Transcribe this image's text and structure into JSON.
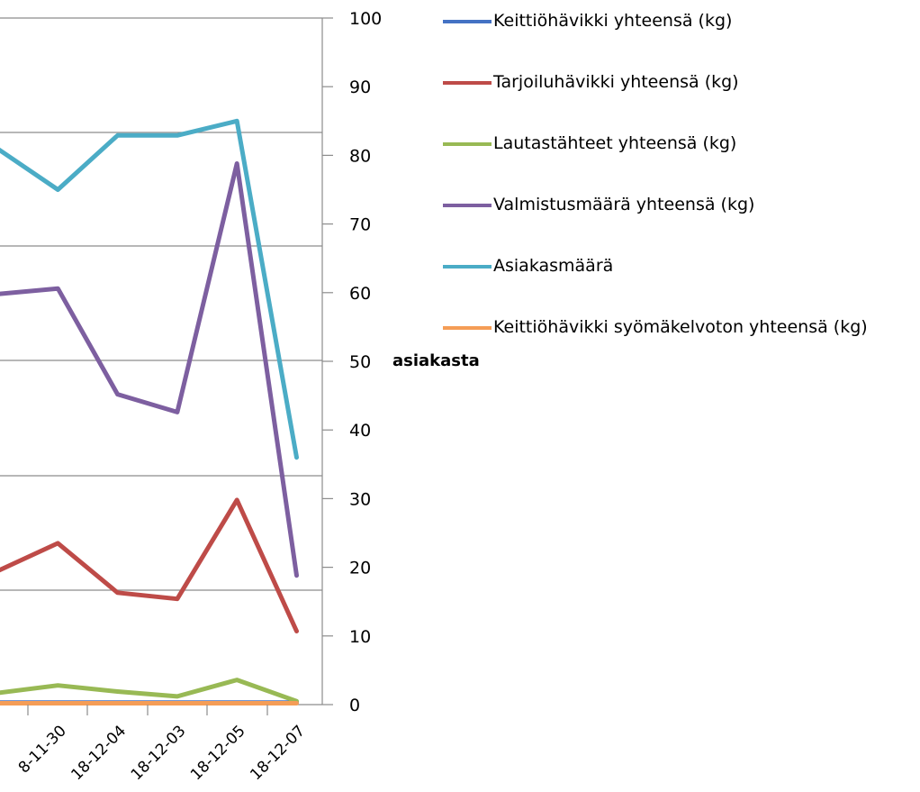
{
  "chart_data": {
    "type": "line",
    "title": "",
    "xlabel": "",
    "ylabel": "asiakasta",
    "ylim": [
      0,
      100
    ],
    "yticks": [
      0,
      10,
      20,
      30,
      40,
      50,
      60,
      70,
      80,
      90,
      100
    ],
    "y_axis_side": "right",
    "categories": [
      "",
      "2018-11-30",
      "2018-12-04",
      "2018-12-03",
      "2018-12-05",
      "2018-12-07"
    ],
    "category_tick_labels": [
      "8-11-30",
      "18-12-04",
      "18-12-03",
      "18-12-05",
      "18-12-07"
    ],
    "legend_position": "right",
    "grid": true,
    "series": [
      {
        "name": "Keittiöhävikki yhteensä (kg)",
        "color": "#4472C4",
        "values": [
          0.3,
          0.3,
          0.3,
          0.3,
          0.3,
          0.3
        ]
      },
      {
        "name": "Tarjoiluhävikki yhteensä (kg)",
        "color": "#BE4B48",
        "values": [
          19.5,
          23.5,
          16.3,
          15.4,
          29.8,
          10.7
        ]
      },
      {
        "name": "Lautastähteet yhteensä (kg)",
        "color": "#98B954",
        "values": [
          1.7,
          2.8,
          1.9,
          1.2,
          3.6,
          0.5
        ]
      },
      {
        "name": "Valmistusmäärä yhteensä (kg)",
        "color": "#7D5FA0",
        "values": [
          59.8,
          60.6,
          45.2,
          42.6,
          78.8,
          18.8
        ]
      },
      {
        "name": "Asiakasmäärä",
        "color": "#4BACC6",
        "values": [
          80.9,
          75.0,
          82.9,
          82.9,
          85.0,
          36.0
        ]
      },
      {
        "name": "Keittiöhävikki syömäkelvoton yhteensä (kg)",
        "color": "#F59D56",
        "values": [
          0.2,
          0.2,
          0.2,
          0.2,
          0.2,
          0.2
        ]
      }
    ]
  }
}
